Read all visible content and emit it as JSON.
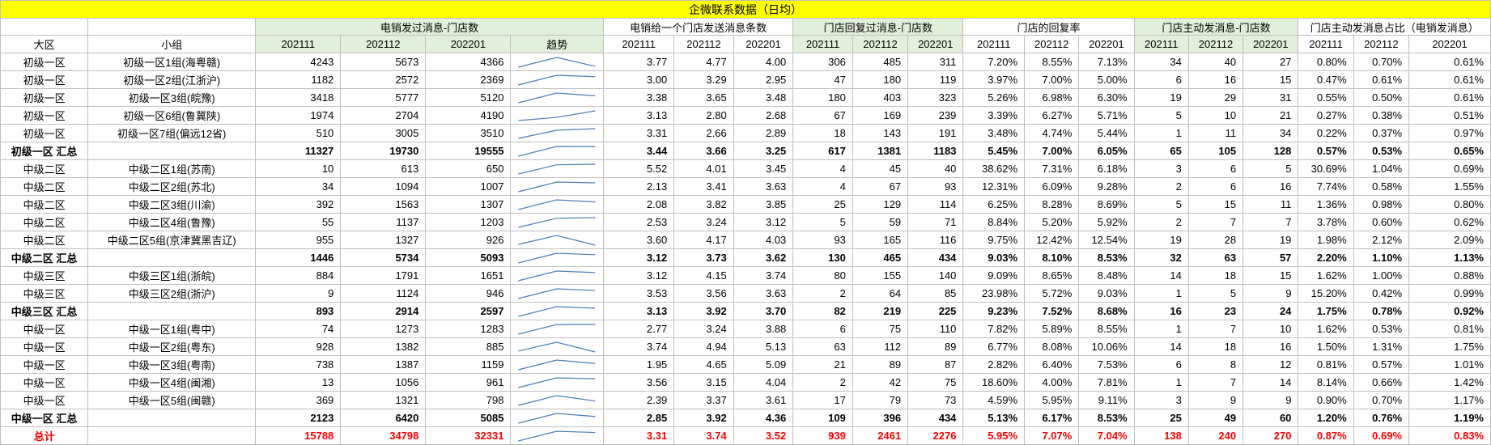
{
  "title": "企微联系数据（日均）",
  "group_headers": [
    {
      "label": "电销发过消息-门店数",
      "span": 4,
      "shade": "green"
    },
    {
      "label": "电销给一个门店发送消息条数",
      "span": 3,
      "shade": "white"
    },
    {
      "label": "门店回复过消息-门店数",
      "span": 3,
      "shade": "green"
    },
    {
      "label": "门店的回复率",
      "span": 3,
      "shade": "white"
    },
    {
      "label": "门店主动发消息-门店数",
      "span": 3,
      "shade": "green"
    },
    {
      "label": "门店主动发消息占比（电销发消息）",
      "span": 3,
      "shade": "white"
    }
  ],
  "col_headers": {
    "region": "大区",
    "group": "小组",
    "months": [
      "202111",
      "202112",
      "202201"
    ],
    "trend": "趋势"
  },
  "rows": [
    {
      "type": "row",
      "region": "初级一区",
      "group": "初级一区1组(海粤赣)",
      "stores": [
        4243,
        5673,
        4366
      ],
      "msgs": [
        "3.77",
        "4.77",
        "4.00"
      ],
      "reply": [
        306,
        485,
        311
      ],
      "rate": [
        "7.20%",
        "8.55%",
        "7.13%"
      ],
      "active": [
        34,
        40,
        27
      ],
      "ratio": [
        "0.80%",
        "0.70%",
        "0.61%"
      ]
    },
    {
      "type": "row",
      "region": "初级一区",
      "group": "初级一区2组(江浙沪)",
      "stores": [
        1182,
        2572,
        2369
      ],
      "msgs": [
        "3.00",
        "3.29",
        "2.95"
      ],
      "reply": [
        47,
        180,
        119
      ],
      "rate": [
        "3.97%",
        "7.00%",
        "5.00%"
      ],
      "active": [
        6,
        16,
        15
      ],
      "ratio": [
        "0.47%",
        "0.61%",
        "0.61%"
      ]
    },
    {
      "type": "row",
      "region": "初级一区",
      "group": "初级一区3组(皖豫)",
      "stores": [
        3418,
        5777,
        5120
      ],
      "msgs": [
        "3.38",
        "3.65",
        "3.48"
      ],
      "reply": [
        180,
        403,
        323
      ],
      "rate": [
        "5.26%",
        "6.98%",
        "6.30%"
      ],
      "active": [
        19,
        29,
        31
      ],
      "ratio": [
        "0.55%",
        "0.50%",
        "0.61%"
      ]
    },
    {
      "type": "row",
      "region": "初级一区",
      "group": "初级一区6组(鲁冀陕)",
      "stores": [
        1974,
        2704,
        4190
      ],
      "msgs": [
        "3.13",
        "2.80",
        "2.68"
      ],
      "reply": [
        67,
        169,
        239
      ],
      "rate": [
        "3.39%",
        "6.27%",
        "5.71%"
      ],
      "active": [
        5,
        10,
        21
      ],
      "ratio": [
        "0.27%",
        "0.38%",
        "0.51%"
      ]
    },
    {
      "type": "row",
      "region": "初级一区",
      "group": "初级一区7组(偏远12省)",
      "stores": [
        510,
        3005,
        3510
      ],
      "msgs": [
        "3.31",
        "2.66",
        "2.89"
      ],
      "reply": [
        18,
        143,
        191
      ],
      "rate": [
        "3.48%",
        "4.74%",
        "5.44%"
      ],
      "active": [
        1,
        11,
        34
      ],
      "ratio": [
        "0.22%",
        "0.37%",
        "0.97%"
      ]
    },
    {
      "type": "subtotal",
      "region": "初级一区 汇总",
      "group": "",
      "stores": [
        11327,
        19730,
        19555
      ],
      "msgs": [
        "3.44",
        "3.66",
        "3.25"
      ],
      "reply": [
        617,
        1381,
        1183
      ],
      "rate": [
        "5.45%",
        "7.00%",
        "6.05%"
      ],
      "active": [
        65,
        105,
        128
      ],
      "ratio": [
        "0.57%",
        "0.53%",
        "0.65%"
      ]
    },
    {
      "type": "row",
      "region": "中级二区",
      "group": "中级二区1组(苏南)",
      "stores": [
        10,
        613,
        650
      ],
      "msgs": [
        "5.52",
        "4.01",
        "3.45"
      ],
      "reply": [
        4,
        45,
        40
      ],
      "rate": [
        "38.62%",
        "7.31%",
        "6.18%"
      ],
      "active": [
        3,
        6,
        5
      ],
      "ratio": [
        "30.69%",
        "1.04%",
        "0.69%"
      ]
    },
    {
      "type": "row",
      "region": "中级二区",
      "group": "中级二区2组(苏北)",
      "stores": [
        34,
        1094,
        1007
      ],
      "msgs": [
        "2.13",
        "3.41",
        "3.63"
      ],
      "reply": [
        4,
        67,
        93
      ],
      "rate": [
        "12.31%",
        "6.09%",
        "9.28%"
      ],
      "active": [
        2,
        6,
        16
      ],
      "ratio": [
        "7.74%",
        "0.58%",
        "1.55%"
      ]
    },
    {
      "type": "row",
      "region": "中级二区",
      "group": "中级二区3组(川渝)",
      "stores": [
        392,
        1563,
        1307
      ],
      "msgs": [
        "2.08",
        "3.82",
        "3.85"
      ],
      "reply": [
        25,
        129,
        114
      ],
      "rate": [
        "6.25%",
        "8.28%",
        "8.69%"
      ],
      "active": [
        5,
        15,
        11
      ],
      "ratio": [
        "1.36%",
        "0.98%",
        "0.80%"
      ]
    },
    {
      "type": "row",
      "region": "中级二区",
      "group": "中级二区4组(鲁豫)",
      "stores": [
        55,
        1137,
        1203
      ],
      "msgs": [
        "2.53",
        "3.24",
        "3.12"
      ],
      "reply": [
        5,
        59,
        71
      ],
      "rate": [
        "8.84%",
        "5.20%",
        "5.92%"
      ],
      "active": [
        2,
        7,
        7
      ],
      "ratio": [
        "3.78%",
        "0.60%",
        "0.62%"
      ]
    },
    {
      "type": "row",
      "region": "中级二区",
      "group": "中级二区5组(京津冀黑吉辽)",
      "stores": [
        955,
        1327,
        926
      ],
      "msgs": [
        "3.60",
        "4.17",
        "4.03"
      ],
      "reply": [
        93,
        165,
        116
      ],
      "rate": [
        "9.75%",
        "12.42%",
        "12.54%"
      ],
      "active": [
        19,
        28,
        19
      ],
      "ratio": [
        "1.98%",
        "2.12%",
        "2.09%"
      ]
    },
    {
      "type": "subtotal",
      "region": "中级二区 汇总",
      "group": "",
      "stores": [
        1446,
        5734,
        5093
      ],
      "msgs": [
        "3.12",
        "3.73",
        "3.62"
      ],
      "reply": [
        130,
        465,
        434
      ],
      "rate": [
        "9.03%",
        "8.10%",
        "8.53%"
      ],
      "active": [
        32,
        63,
        57
      ],
      "ratio": [
        "2.20%",
        "1.10%",
        "1.13%"
      ]
    },
    {
      "type": "row",
      "region": "中级三区",
      "group": "中级三区1组(浙皖)",
      "stores": [
        884,
        1791,
        1651
      ],
      "msgs": [
        "3.12",
        "4.15",
        "3.74"
      ],
      "reply": [
        80,
        155,
        140
      ],
      "rate": [
        "9.09%",
        "8.65%",
        "8.48%"
      ],
      "active": [
        14,
        18,
        15
      ],
      "ratio": [
        "1.62%",
        "1.00%",
        "0.88%"
      ]
    },
    {
      "type": "row",
      "region": "中级三区",
      "group": "中级三区2组(浙沪)",
      "stores": [
        9,
        1124,
        946
      ],
      "msgs": [
        "3.53",
        "3.56",
        "3.63"
      ],
      "reply": [
        2,
        64,
        85
      ],
      "rate": [
        "23.98%",
        "5.72%",
        "9.03%"
      ],
      "active": [
        1,
        5,
        9
      ],
      "ratio": [
        "15.20%",
        "0.42%",
        "0.99%"
      ]
    },
    {
      "type": "subtotal",
      "region": "中级三区 汇总",
      "group": "",
      "stores": [
        893,
        2914,
        2597
      ],
      "msgs": [
        "3.13",
        "3.92",
        "3.70"
      ],
      "reply": [
        82,
        219,
        225
      ],
      "rate": [
        "9.23%",
        "7.52%",
        "8.68%"
      ],
      "active": [
        16,
        23,
        24
      ],
      "ratio": [
        "1.75%",
        "0.78%",
        "0.92%"
      ]
    },
    {
      "type": "row",
      "region": "中级一区",
      "group": "中级一区1组(粤中)",
      "stores": [
        74,
        1273,
        1283
      ],
      "msgs": [
        "2.77",
        "3.24",
        "3.88"
      ],
      "reply": [
        6,
        75,
        110
      ],
      "rate": [
        "7.82%",
        "5.89%",
        "8.55%"
      ],
      "active": [
        1,
        7,
        10
      ],
      "ratio": [
        "1.62%",
        "0.53%",
        "0.81%"
      ]
    },
    {
      "type": "row",
      "region": "中级一区",
      "group": "中级一区2组(粤东)",
      "stores": [
        928,
        1382,
        885
      ],
      "msgs": [
        "3.74",
        "4.94",
        "5.13"
      ],
      "reply": [
        63,
        112,
        89
      ],
      "rate": [
        "6.77%",
        "8.08%",
        "10.06%"
      ],
      "active": [
        14,
        18,
        16
      ],
      "ratio": [
        "1.50%",
        "1.31%",
        "1.75%"
      ]
    },
    {
      "type": "row",
      "region": "中级一区",
      "group": "中级一区3组(粤南)",
      "stores": [
        738,
        1387,
        1159
      ],
      "msgs": [
        "1.95",
        "4.65",
        "5.09"
      ],
      "reply": [
        21,
        89,
        87
      ],
      "rate": [
        "2.82%",
        "6.40%",
        "7.53%"
      ],
      "active": [
        6,
        8,
        12
      ],
      "ratio": [
        "0.81%",
        "0.57%",
        "1.01%"
      ]
    },
    {
      "type": "row",
      "region": "中级一区",
      "group": "中级一区4组(闽湘)",
      "stores": [
        13,
        1056,
        961
      ],
      "msgs": [
        "3.56",
        "3.15",
        "4.04"
      ],
      "reply": [
        2,
        42,
        75
      ],
      "rate": [
        "18.60%",
        "4.00%",
        "7.81%"
      ],
      "active": [
        1,
        7,
        14
      ],
      "ratio": [
        "8.14%",
        "0.66%",
        "1.42%"
      ]
    },
    {
      "type": "row",
      "region": "中级一区",
      "group": "中级一区5组(闽赣)",
      "stores": [
        369,
        1321,
        798
      ],
      "msgs": [
        "2.39",
        "3.37",
        "3.61"
      ],
      "reply": [
        17,
        79,
        73
      ],
      "rate": [
        "4.59%",
        "5.95%",
        "9.11%"
      ],
      "active": [
        3,
        9,
        9
      ],
      "ratio": [
        "0.90%",
        "0.70%",
        "1.17%"
      ]
    },
    {
      "type": "subtotal",
      "region": "中级一区 汇总",
      "group": "",
      "stores": [
        2123,
        6420,
        5085
      ],
      "msgs": [
        "2.85",
        "3.92",
        "4.36"
      ],
      "reply": [
        109,
        396,
        434
      ],
      "rate": [
        "5.13%",
        "6.17%",
        "8.53%"
      ],
      "active": [
        25,
        49,
        60
      ],
      "ratio": [
        "1.20%",
        "0.76%",
        "1.19%"
      ]
    },
    {
      "type": "total",
      "region": "总计",
      "group": "",
      "stores": [
        15788,
        34798,
        32331
      ],
      "msgs": [
        "3.31",
        "3.74",
        "3.52"
      ],
      "reply": [
        939,
        2461,
        2276
      ],
      "rate": [
        "5.95%",
        "7.07%",
        "7.04%"
      ],
      "active": [
        138,
        240,
        270
      ],
      "ratio": [
        "0.87%",
        "0.69%",
        "0.83%"
      ]
    }
  ],
  "colors": {
    "title_bg": "#ffff00",
    "group_green": "#e2efda",
    "sparkline": "#4a7ebb",
    "total_text": "#ff0000",
    "grid": "#bfbfbf"
  }
}
